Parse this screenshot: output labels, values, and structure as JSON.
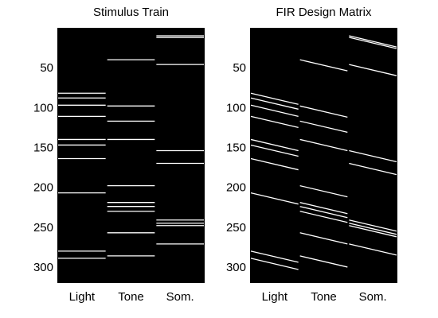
{
  "chart_data": [
    {
      "type": "heatmap",
      "title": "Stimulus Train",
      "categories": [
        "Light",
        "Tone",
        "Som."
      ],
      "ylim": [
        320,
        0
      ],
      "yticks": [
        50,
        100,
        150,
        200,
        250,
        300
      ],
      "grid": false,
      "background_color": "#000000",
      "event_color": "#ffffff",
      "events": {
        "Light": [
          82,
          88,
          97,
          111,
          140,
          147,
          164,
          207,
          280,
          289
        ],
        "Tone": [
          40,
          98,
          117,
          140,
          198,
          219,
          224,
          230,
          257,
          286
        ],
        "Som.": [
          10,
          12,
          46,
          154,
          170,
          241,
          245,
          248,
          271
        ]
      }
    },
    {
      "type": "heatmap",
      "title": "FIR Design Matrix",
      "categories": [
        "Light",
        "Tone",
        "Som."
      ],
      "ylim": [
        320,
        0
      ],
      "yticks": [
        50,
        100,
        150,
        200,
        250,
        300
      ],
      "grid": false,
      "background_color": "#000000",
      "event_color": "#ffffff",
      "fir_lag_span": 14,
      "events": {
        "Light": [
          82,
          88,
          97,
          111,
          140,
          147,
          164,
          207,
          280,
          289
        ],
        "Tone": [
          40,
          98,
          117,
          140,
          198,
          219,
          224,
          230,
          257,
          286
        ],
        "Som.": [
          10,
          12,
          46,
          154,
          170,
          241,
          245,
          248,
          271
        ]
      }
    }
  ]
}
